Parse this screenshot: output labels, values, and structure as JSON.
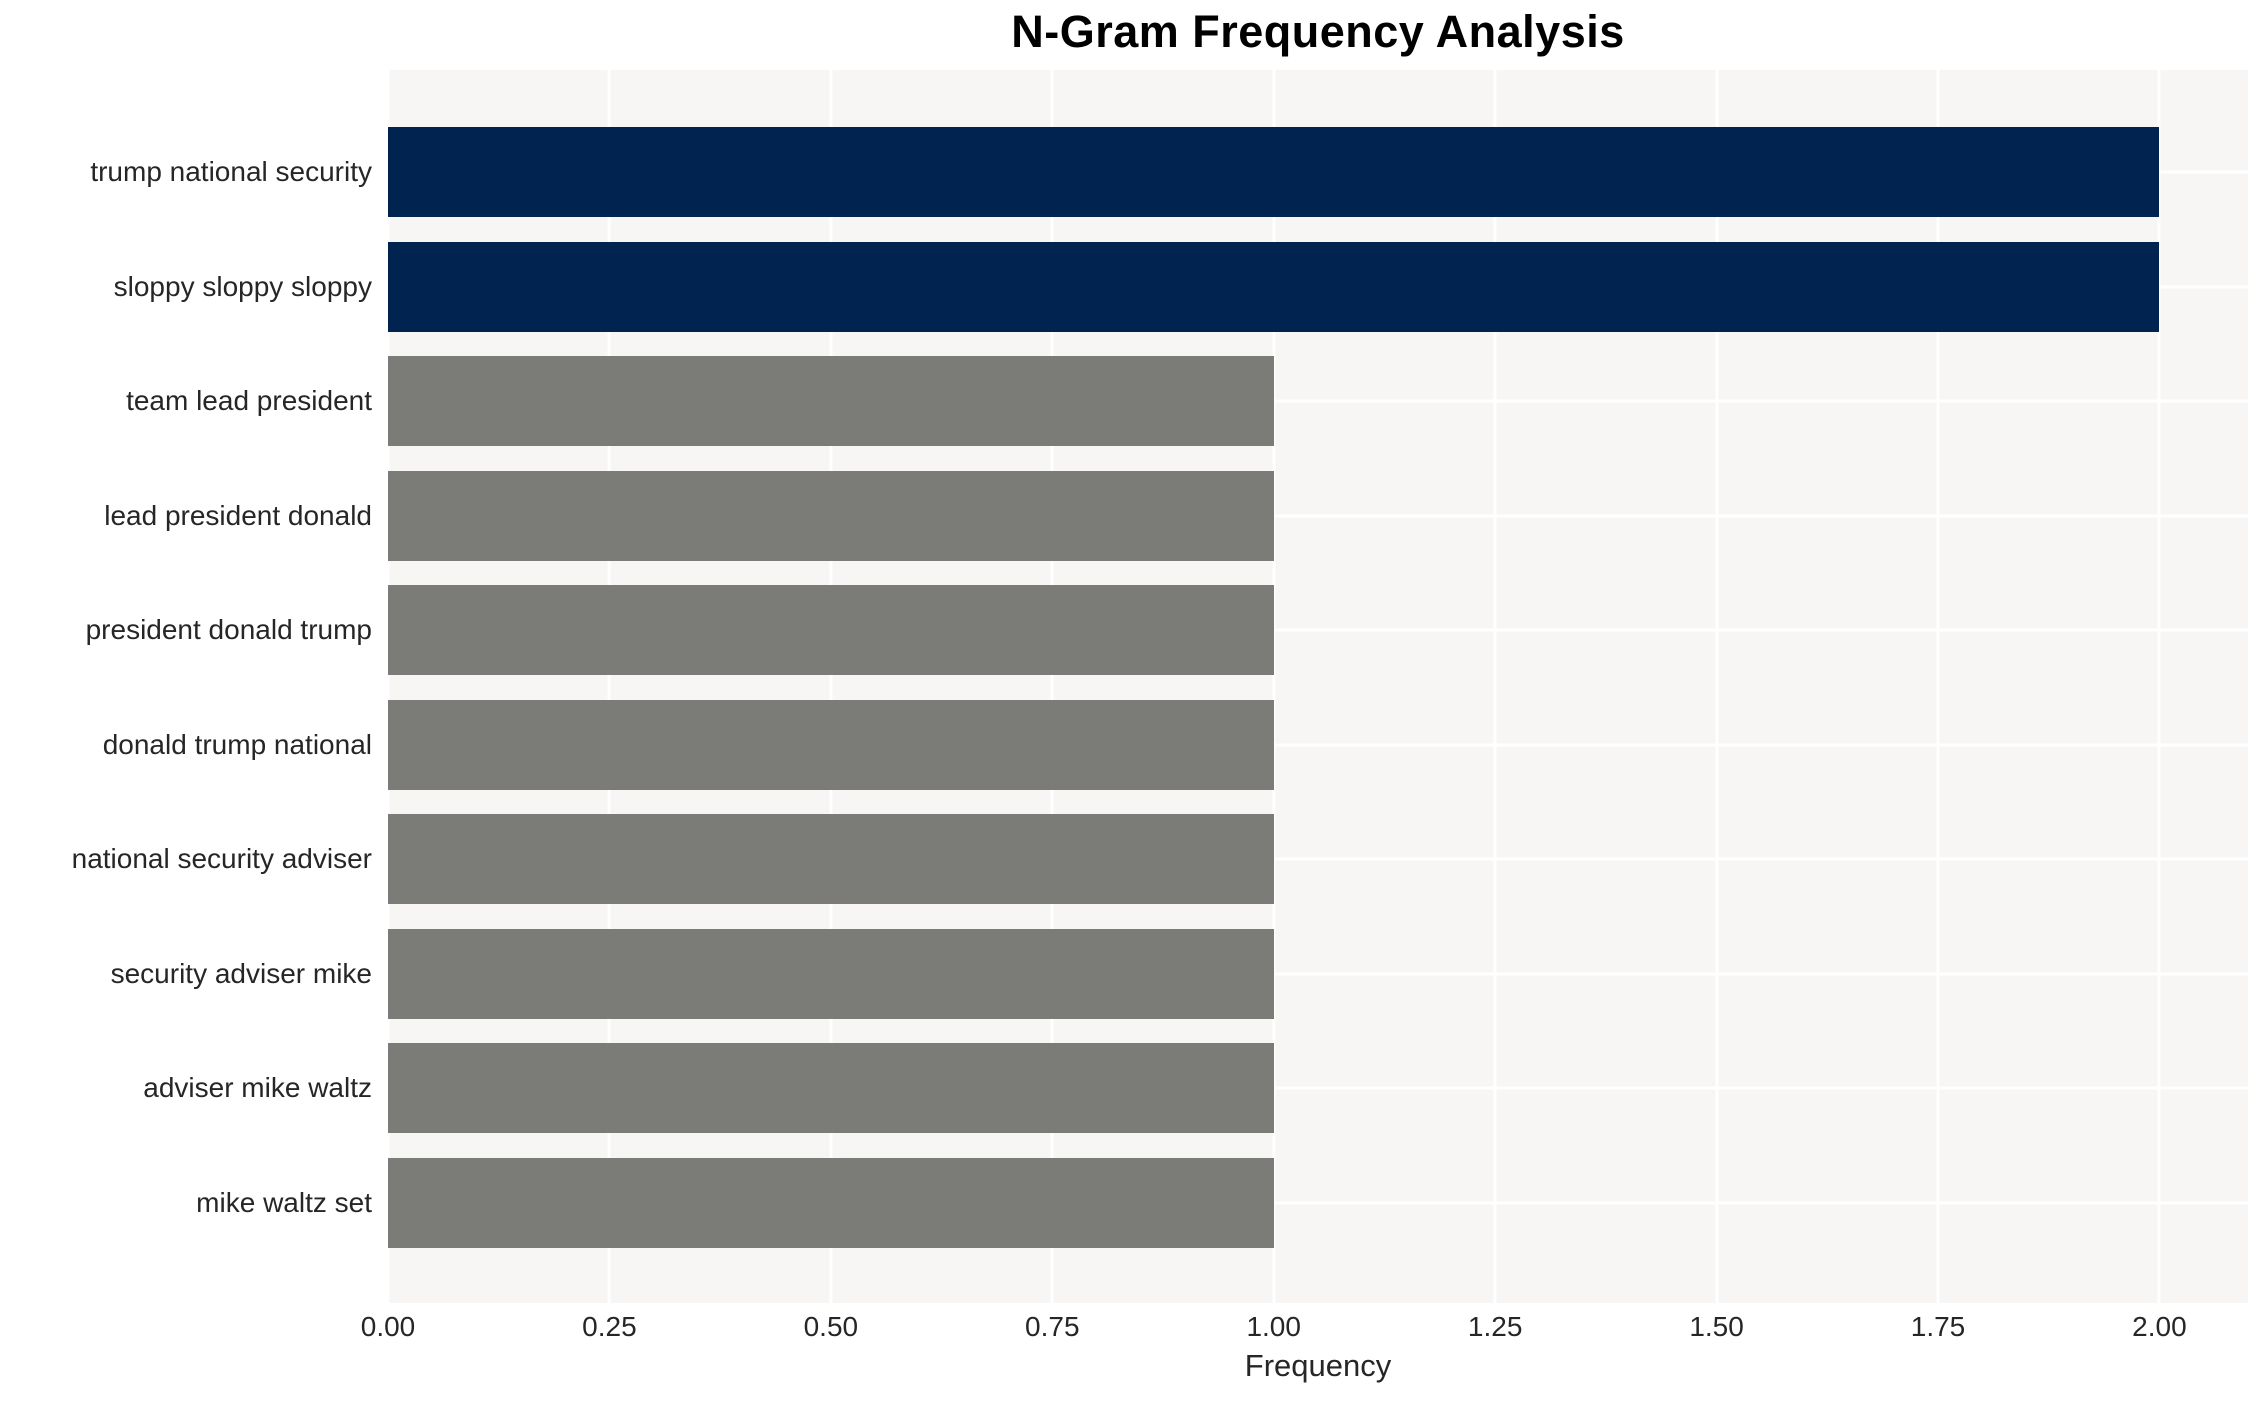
{
  "chart_data": {
    "type": "bar",
    "orientation": "horizontal",
    "title": "N-Gram Frequency Analysis",
    "xlabel": "Frequency",
    "ylabel": "",
    "categories": [
      "trump national security",
      "sloppy sloppy sloppy",
      "team lead president",
      "lead president donald",
      "president donald trump",
      "donald trump national",
      "national security adviser",
      "security adviser mike",
      "adviser mike waltz",
      "mike waltz set"
    ],
    "values": [
      2,
      2,
      1,
      1,
      1,
      1,
      1,
      1,
      1,
      1
    ],
    "bar_colors": [
      "#002350",
      "#002350",
      "#7b7b78",
      "#7b7b78",
      "#7b7b78",
      "#7b7b78",
      "#7b7b78",
      "#7b7b78",
      "#7b7b78",
      "#7b7b78"
    ],
    "xlim": [
      0,
      2.1
    ],
    "xticks": [
      0.0,
      0.25,
      0.5,
      0.75,
      1.0,
      1.25,
      1.5,
      1.75,
      2.0
    ],
    "xtick_labels": [
      "0.00",
      "0.25",
      "0.50",
      "0.75",
      "1.00",
      "1.25",
      "1.50",
      "1.75",
      "2.00"
    ],
    "grid": true,
    "legend": false
  },
  "style": {
    "highlight_color": "#002350",
    "base_color": "#7b7b78",
    "plot_background": "#f7f6f4",
    "grid_color": "#ffffff",
    "text_color": "#262626",
    "title_color": "#000000"
  }
}
